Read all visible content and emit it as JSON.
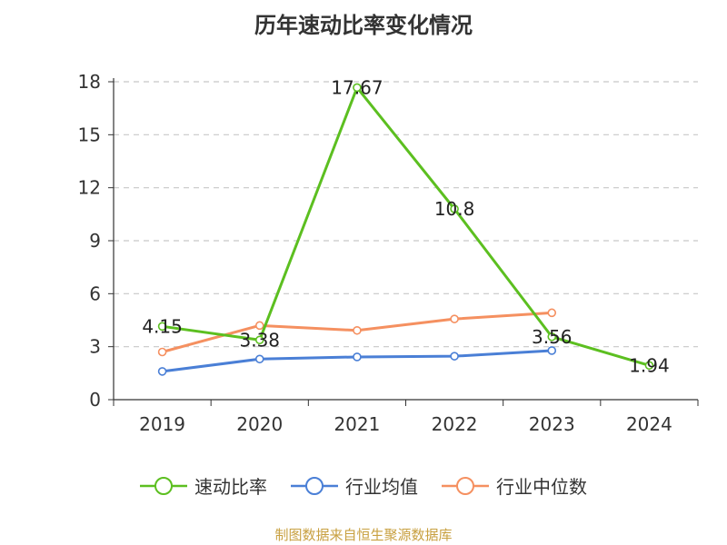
{
  "chart_data": {
    "type": "line",
    "title": "历年速动比率变化情况",
    "categories": [
      "2019",
      "2020",
      "2021",
      "2022",
      "2023",
      "2024"
    ],
    "ylim": [
      0,
      18
    ],
    "yticks": [
      "0",
      "3",
      "6",
      "9",
      "12",
      "15",
      "18"
    ],
    "grid": true,
    "legend_position": "bottom",
    "series": [
      {
        "name": "速动比率",
        "color": "#5cbf20",
        "values": [
          4.15,
          3.38,
          17.67,
          10.8,
          3.56,
          1.94
        ],
        "labels": [
          "4.15",
          "3.38",
          "17.67",
          "10.8",
          "3.56",
          "1.94"
        ]
      },
      {
        "name": "行业均值",
        "color": "#4a7fd6",
        "values": [
          1.6,
          2.3,
          2.42,
          2.46,
          2.78,
          null
        ]
      },
      {
        "name": "行业中位数",
        "color": "#f59060",
        "values": [
          2.7,
          4.2,
          3.92,
          4.57,
          4.92,
          null
        ]
      }
    ]
  },
  "source": "制图数据来自恒生聚源数据库"
}
